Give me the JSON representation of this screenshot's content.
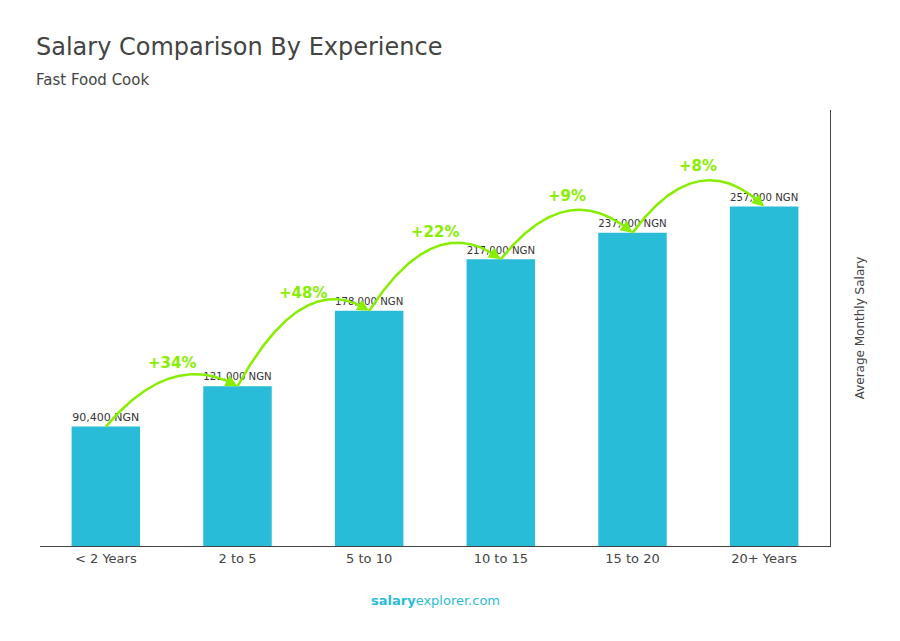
{
  "chart_data": {
    "type": "bar",
    "title": "Salary Comparison By Experience",
    "subtitle": "Fast Food Cook",
    "ylabel": "Average Monthly Salary",
    "categories": [
      "< 2 Years",
      "2 to 5",
      "5 to 10",
      "10 to 15",
      "15 to 20",
      "20+ Years"
    ],
    "values": [
      90400,
      121000,
      178000,
      217000,
      237000,
      257000
    ],
    "value_labels": [
      "90,400 NGN",
      "121,000 NGN",
      "178,000 NGN",
      "217,000 NGN",
      "237,000 NGN",
      "257,000 NGN"
    ],
    "data_labels": true,
    "color": "#29bcd8",
    "ylim": [
      0,
      330000
    ],
    "tick_labels": "x",
    "grid": false,
    "annotations": [
      {
        "text": "+34%",
        "from": "< 2 Years",
        "to": "2 to 5",
        "color": "#88ee00"
      },
      {
        "text": "+48%",
        "from": "2 to 5",
        "to": "5 to 10",
        "color": "#88ee00"
      },
      {
        "text": "+22%",
        "from": "5 to 10",
        "to": "10 to 15",
        "color": "#88ee00"
      },
      {
        "text": "+9%",
        "from": "10 to 15",
        "to": "15 to 20",
        "color": "#88ee00"
      },
      {
        "text": "+8%",
        "from": "15 to 20",
        "to": "20+ Years",
        "color": "#88ee00"
      }
    ],
    "footer": [
      "salary",
      "explorer.com"
    ]
  }
}
